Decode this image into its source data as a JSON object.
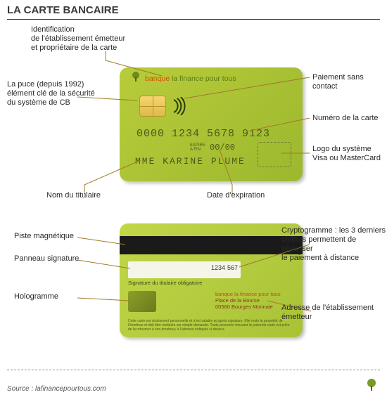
{
  "title": "LA CARTE BANCAIRE",
  "source": "Source : lafinancepourtous.com",
  "colors": {
    "card_bg_from": "#b8cc3a",
    "card_bg_to": "#9cb82e",
    "magstripe": "#1a1a1a",
    "text_card": "#4a5a1a",
    "accent": "#c0501a",
    "annotation_text": "#2a2a2a"
  },
  "front": {
    "bank_name_1": "banque",
    "bank_name_2": "la finance pour tous",
    "card_number": "0000 1234 5678 9123",
    "expire_label": "EXPIRE\nA FIN",
    "expire_value": "00/00",
    "holder": "MME KARINE PLUME"
  },
  "back": {
    "sig_last4": "1234",
    "sig_cvv": "567",
    "sig_required": "Signature du titulaire obligatoire",
    "addr_l1": "banque la finance pour tous",
    "addr_l2": "Place de la Bourse",
    "addr_l3": "00560 Bourges Monnaie",
    "disclaimer": "Cette carte est strictement personnelle et n'est valable qu'après signature. Elle reste la propriété de l'émetteur et doit être restituée sur simple demande. Toute personne trouvant la présente carte est priée de la retourner à son émetteur, à l'adresse indiquée ci‑dessus."
  },
  "annotations": {
    "issuer": "Identification\nde l'établissement émetteur\net propriétaire de la carte",
    "chip": "La puce (depuis 1992)\nélément clé de la sécurité\ndu système de CB",
    "holder_name": "Nom du titulaire",
    "contactless": "Paiement sans contact",
    "card_number": "Numéro de la carte",
    "logo": "Logo du système\nVisa ou MasterCard",
    "expiry": "Date d'expiration",
    "magstripe": "Piste magnétique",
    "sig_panel": "Panneau signature",
    "hologram": "Hologramme",
    "cvv": "Cryptogramme : les 3 derniers\nchiffres permettent de sécuriser\nle paiement à distance",
    "issuer_addr": "Adresse de l'établissement\németteur"
  }
}
